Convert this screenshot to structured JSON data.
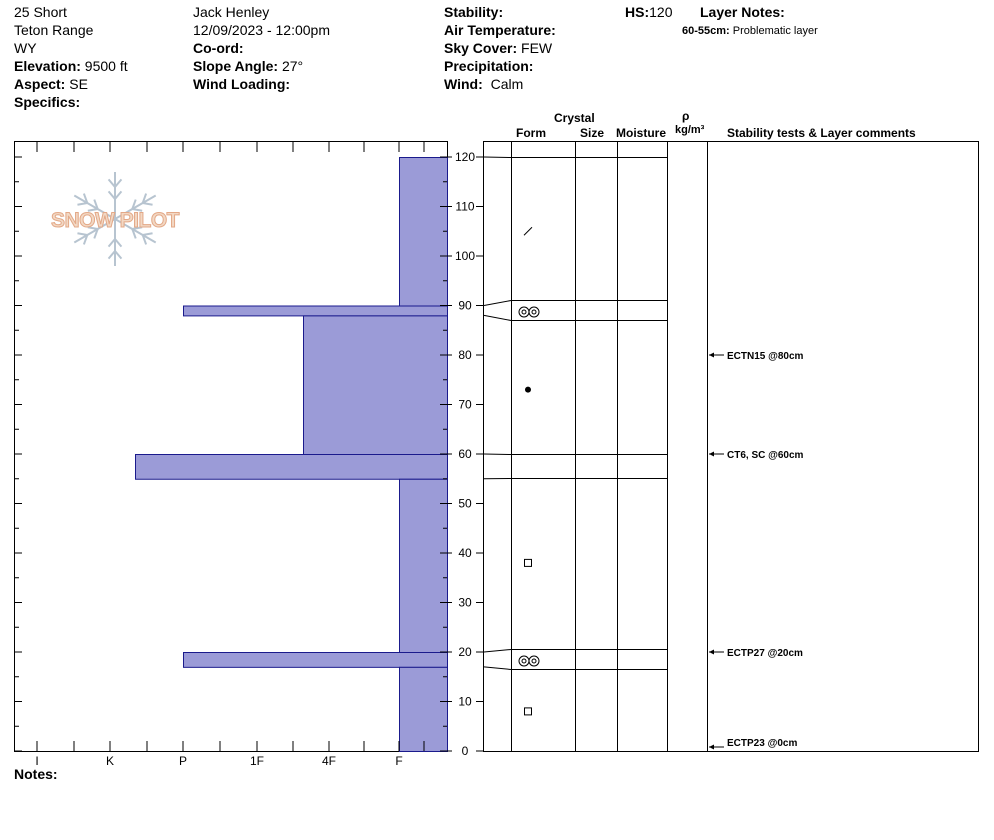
{
  "header": {
    "location": "25 Short",
    "range": "Teton Range",
    "state": "WY",
    "elevation_label": "Elevation:",
    "elevation": "9500 ft",
    "aspect_label": "Aspect:",
    "aspect": "SE",
    "specifics_label": "Specifics:",
    "observer": "Jack Henley",
    "datetime": "12/09/2023 - 12:00pm",
    "coord_label": "Co-ord:",
    "slope_label": "Slope Angle:",
    "slope": "27°",
    "wind_loading_label": "Wind Loading:",
    "stability_label": "Stability:",
    "air_temp_label": "Air Temperature:",
    "sky_label": "Sky Cover:",
    "sky": "FEW",
    "precip_label": "Precipitation:",
    "wind_label": "Wind:",
    "wind": "Calm",
    "hs_label": "HS:",
    "hs": "120",
    "layer_notes_label": "Layer Notes:",
    "layer_note_range": "60-55cm:",
    "layer_note_text": "Problematic layer"
  },
  "columns": {
    "crystal": "Crystal",
    "form": "Form",
    "size": "Size",
    "moisture": "Moisture",
    "rho": "ρ",
    "density_unit": "kg/m³",
    "stability": "Stability tests & Layer comments"
  },
  "logo": "SNOW PILOT",
  "notes_label": "Notes:",
  "chart_data": {
    "type": "bar",
    "orientation": "horizontal",
    "description_axis": "hand hardness",
    "hardness_ticks": [
      "I",
      "K",
      "P",
      "1F",
      "4F",
      "F"
    ],
    "depth_ticks": [
      0,
      10,
      20,
      30,
      40,
      50,
      60,
      70,
      80,
      90,
      100,
      110,
      120
    ],
    "depth_range": [
      0,
      120
    ],
    "bar_color": "#9b9bd7",
    "layers": [
      {
        "top": 120,
        "bottom": 90,
        "hardness": "F"
      },
      {
        "top": 90,
        "bottom": 88,
        "hardness": "P"
      },
      {
        "top": 88,
        "bottom": 60,
        "hardness": "4F+"
      },
      {
        "top": 60,
        "bottom": 55,
        "hardness": "K-"
      },
      {
        "top": 55,
        "bottom": 20,
        "hardness": "F"
      },
      {
        "top": 20,
        "bottom": 17,
        "hardness": "P"
      },
      {
        "top": 17,
        "bottom": 0,
        "hardness": "F"
      }
    ],
    "grain_forms": [
      {
        "depth": 105,
        "symbol": "slash"
      },
      {
        "depth": 89,
        "symbol": "double-circle"
      },
      {
        "depth": 73,
        "symbol": "dot"
      },
      {
        "depth": 38,
        "symbol": "square"
      },
      {
        "depth": 18.5,
        "symbol": "double-circle"
      },
      {
        "depth": 8,
        "symbol": "square"
      }
    ],
    "stability_tests": [
      {
        "depth": 80,
        "label": "ECTN15 @80cm"
      },
      {
        "depth": 60,
        "label": "CT6, SC @60cm"
      },
      {
        "depth": 20,
        "label": "ECTP27 @20cm"
      },
      {
        "depth": 0,
        "label": "ECTP23 @0cm"
      }
    ]
  }
}
